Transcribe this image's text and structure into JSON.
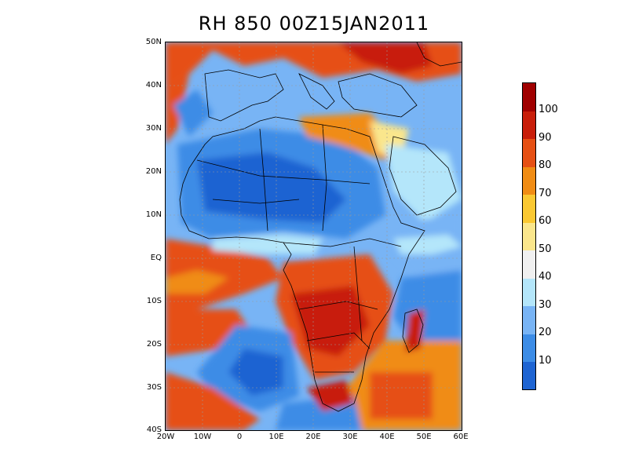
{
  "title": "RH 850 00Z15JAN2011",
  "axes": {
    "lat_labels": [
      "50N",
      "40N",
      "30N",
      "20N",
      "10N",
      "EQ",
      "10S",
      "20S",
      "30S",
      "40S"
    ],
    "lon_labels": [
      "20W",
      "10W",
      "0",
      "10E",
      "20E",
      "30E",
      "40E",
      "50E",
      "60E"
    ],
    "lat_range": [
      -40,
      50
    ],
    "lon_range": [
      -20,
      60
    ]
  },
  "colorbar": {
    "labels": [
      "10",
      "20",
      "30",
      "40",
      "50",
      "60",
      "70",
      "80",
      "90",
      "100"
    ],
    "colors": [
      "#1e64d2",
      "#3c8ce6",
      "#78b4f5",
      "#b4e6fa",
      "#f0f0f0",
      "#fae68c",
      "#fac832",
      "#f08c14",
      "#e65014",
      "#c81e0a",
      "#a00000"
    ]
  },
  "map": {
    "region": "Africa and surrounding seas",
    "variable": "Relative humidity at 850 hPa",
    "grid": true
  }
}
